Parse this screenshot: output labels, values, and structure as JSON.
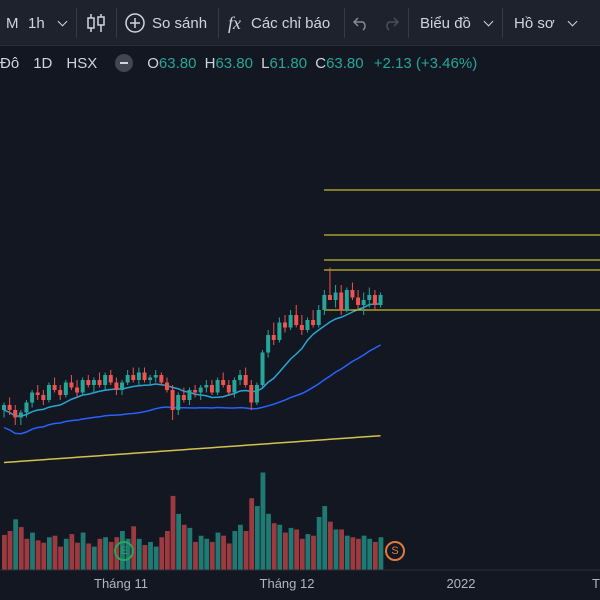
{
  "toolbar": {
    "interval_prefix": "M",
    "interval": "1h",
    "compare": "So sánh",
    "indicators_icon": "fx",
    "indicators": "Các chỉ báo",
    "chart_menu": "Biểu đồ",
    "profile_menu": "Hồ sơ"
  },
  "legend": {
    "name_fragment": "Đô",
    "timeframe": "1D",
    "exchange": "HSX",
    "open_key": "O",
    "open": "63.80",
    "high_key": "H",
    "high": "63.80",
    "low_key": "L",
    "low": "61.80",
    "close_key": "C",
    "close": "63.80",
    "change": "+2.13 (+3.46%)"
  },
  "x_axis": {
    "labels": [
      "Tháng 11",
      "Tháng 12",
      "2022",
      "T"
    ]
  },
  "badges": {
    "earnings": "E",
    "split": "S"
  },
  "colors": {
    "up": "#26a69a",
    "down": "#ef5350",
    "vol_up": "#1e7a72",
    "vol_down": "#9c3a40",
    "ma_fast": "#26a6d6",
    "ma_mid": "#2962ff",
    "ma_slow": "#d4c24a",
    "hline": "#f0e130"
  },
  "chart_data": {
    "type": "candlestick",
    "candles": [
      [
        57.6,
        57.9,
        57.3,
        57.8
      ],
      [
        57.8,
        58.1,
        57.4,
        57.6
      ],
      [
        57.6,
        57.8,
        57.0,
        57.3
      ],
      [
        57.3,
        57.6,
        57.0,
        57.5
      ],
      [
        57.5,
        58.0,
        57.3,
        57.9
      ],
      [
        57.9,
        58.4,
        57.7,
        58.3
      ],
      [
        58.3,
        58.6,
        58.0,
        58.2
      ],
      [
        58.2,
        58.4,
        57.8,
        58.0
      ],
      [
        58.0,
        58.7,
        57.9,
        58.6
      ],
      [
        58.6,
        58.9,
        58.3,
        58.4
      ],
      [
        58.4,
        58.6,
        58.0,
        58.2
      ],
      [
        58.2,
        58.8,
        58.1,
        58.7
      ],
      [
        58.7,
        59.0,
        58.4,
        58.5
      ],
      [
        58.5,
        58.8,
        58.1,
        58.3
      ],
      [
        58.3,
        58.9,
        58.2,
        58.8
      ],
      [
        58.8,
        59.0,
        58.5,
        58.6
      ],
      [
        58.6,
        58.9,
        58.3,
        58.8
      ],
      [
        58.8,
        59.1,
        58.5,
        58.6
      ],
      [
        58.6,
        59.1,
        58.4,
        59.0
      ],
      [
        59.0,
        59.2,
        58.6,
        58.7
      ],
      [
        58.7,
        58.9,
        58.2,
        58.4
      ],
      [
        58.4,
        58.8,
        58.2,
        58.7
      ],
      [
        58.7,
        59.2,
        58.6,
        59.0
      ],
      [
        59.0,
        59.3,
        58.7,
        58.8
      ],
      [
        58.8,
        59.3,
        58.6,
        59.1
      ],
      [
        59.1,
        59.3,
        58.7,
        58.8
      ],
      [
        58.8,
        59.0,
        58.6,
        58.9
      ],
      [
        58.9,
        59.2,
        58.7,
        59.0
      ],
      [
        59.0,
        59.1,
        58.6,
        58.7
      ],
      [
        58.7,
        58.9,
        58.3,
        58.4
      ],
      [
        58.4,
        58.6,
        57.2,
        57.6
      ],
      [
        57.6,
        58.3,
        57.4,
        58.2
      ],
      [
        58.2,
        58.5,
        57.9,
        58.0
      ],
      [
        58.0,
        58.5,
        57.8,
        58.4
      ],
      [
        58.4,
        58.6,
        58.1,
        58.3
      ],
      [
        58.3,
        58.6,
        58.0,
        58.5
      ],
      [
        58.5,
        58.8,
        58.3,
        58.6
      ],
      [
        58.6,
        58.8,
        58.2,
        58.3
      ],
      [
        58.3,
        58.9,
        58.2,
        58.8
      ],
      [
        58.8,
        59.1,
        58.5,
        58.6
      ],
      [
        58.6,
        58.8,
        58.2,
        58.3
      ],
      [
        58.3,
        58.9,
        58.1,
        58.8
      ],
      [
        58.8,
        59.2,
        58.6,
        59.0
      ],
      [
        59.0,
        59.3,
        58.5,
        58.6
      ],
      [
        58.6,
        58.8,
        57.6,
        57.9
      ],
      [
        57.9,
        58.7,
        57.8,
        58.6
      ],
      [
        58.6,
        60.0,
        58.5,
        59.9
      ],
      [
        59.9,
        60.8,
        59.7,
        60.6
      ],
      [
        60.6,
        61.1,
        60.2,
        60.4
      ],
      [
        60.4,
        61.3,
        60.3,
        61.1
      ],
      [
        61.1,
        61.4,
        60.7,
        60.9
      ],
      [
        60.9,
        61.6,
        60.8,
        61.4
      ],
      [
        61.4,
        61.8,
        60.9,
        61.0
      ],
      [
        61.0,
        61.4,
        60.6,
        60.8
      ],
      [
        60.8,
        61.3,
        60.7,
        61.2
      ],
      [
        61.2,
        61.6,
        60.9,
        61.0
      ],
      [
        61.0,
        61.8,
        60.9,
        61.6
      ],
      [
        61.6,
        62.4,
        61.4,
        62.2
      ],
      [
        62.2,
        63.3,
        62.0,
        62.0
      ],
      [
        62.0,
        62.6,
        61.7,
        62.3
      ],
      [
        62.3,
        62.6,
        61.4,
        61.6
      ],
      [
        61.6,
        62.5,
        61.5,
        62.4
      ],
      [
        62.4,
        62.7,
        62.0,
        62.1
      ],
      [
        62.1,
        62.4,
        61.6,
        61.8
      ],
      [
        61.8,
        62.3,
        61.4,
        62.0
      ],
      [
        62.0,
        62.5,
        61.7,
        62.2
      ],
      [
        62.2,
        62.4,
        61.6,
        61.8
      ],
      [
        61.8,
        62.3,
        61.7,
        62.2
      ]
    ],
    "volume": [
      [
        45,
        "d"
      ],
      [
        50,
        "d"
      ],
      [
        65,
        "u"
      ],
      [
        55,
        "d"
      ],
      [
        40,
        "d"
      ],
      [
        48,
        "u"
      ],
      [
        38,
        "d"
      ],
      [
        35,
        "d"
      ],
      [
        42,
        "u"
      ],
      [
        44,
        "d"
      ],
      [
        30,
        "d"
      ],
      [
        40,
        "u"
      ],
      [
        46,
        "d"
      ],
      [
        35,
        "d"
      ],
      [
        48,
        "u"
      ],
      [
        34,
        "d"
      ],
      [
        30,
        "u"
      ],
      [
        40,
        "d"
      ],
      [
        42,
        "u"
      ],
      [
        36,
        "d"
      ],
      [
        42,
        "d"
      ],
      [
        50,
        "u"
      ],
      [
        40,
        "u"
      ],
      [
        56,
        "d"
      ],
      [
        40,
        "u"
      ],
      [
        32,
        "d"
      ],
      [
        36,
        "u"
      ],
      [
        30,
        "u"
      ],
      [
        42,
        "d"
      ],
      [
        50,
        "d"
      ],
      [
        95,
        "d"
      ],
      [
        72,
        "u"
      ],
      [
        58,
        "d"
      ],
      [
        54,
        "u"
      ],
      [
        36,
        "d"
      ],
      [
        44,
        "u"
      ],
      [
        40,
        "u"
      ],
      [
        36,
        "d"
      ],
      [
        48,
        "u"
      ],
      [
        44,
        "d"
      ],
      [
        34,
        "d"
      ],
      [
        50,
        "u"
      ],
      [
        58,
        "u"
      ],
      [
        50,
        "d"
      ],
      [
        92,
        "d"
      ],
      [
        82,
        "u"
      ],
      [
        125,
        "u"
      ],
      [
        72,
        "u"
      ],
      [
        60,
        "d"
      ],
      [
        58,
        "u"
      ],
      [
        48,
        "d"
      ],
      [
        54,
        "u"
      ],
      [
        52,
        "d"
      ],
      [
        40,
        "d"
      ],
      [
        46,
        "u"
      ],
      [
        44,
        "d"
      ],
      [
        68,
        "u"
      ],
      [
        82,
        "u"
      ],
      [
        62,
        "d"
      ],
      [
        52,
        "u"
      ],
      [
        52,
        "d"
      ],
      [
        44,
        "u"
      ],
      [
        42,
        "d"
      ],
      [
        40,
        "d"
      ],
      [
        44,
        "u"
      ],
      [
        40,
        "u"
      ],
      [
        36,
        "d"
      ],
      [
        42,
        "u"
      ]
    ],
    "horizontal_lines": [
      66.4,
      64.6,
      63.6,
      63.2,
      61.6
    ]
  }
}
